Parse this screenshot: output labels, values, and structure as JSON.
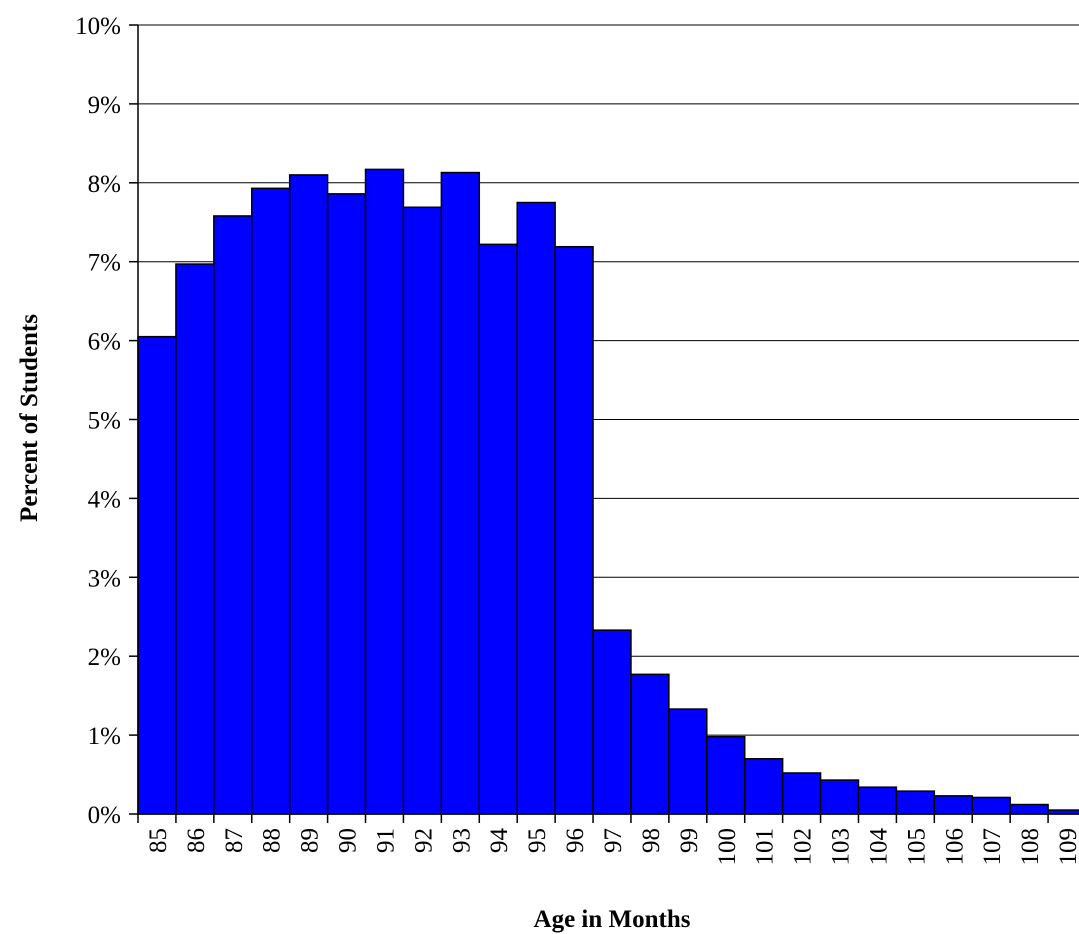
{
  "chart_data": {
    "type": "bar",
    "title": "",
    "xlabel": "Age in Months",
    "ylabel": "Percent of Students",
    "categories": [
      "85",
      "86",
      "87",
      "88",
      "89",
      "90",
      "91",
      "92",
      "93",
      "94",
      "95",
      "96",
      "97",
      "98",
      "99",
      "100",
      "101",
      "102",
      "103",
      "104",
      "105",
      "106",
      "107",
      "108",
      "109"
    ],
    "values": [
      6.05,
      6.97,
      7.58,
      7.93,
      8.1,
      7.86,
      8.17,
      7.69,
      8.13,
      7.22,
      7.75,
      7.19,
      2.33,
      1.77,
      1.33,
      0.98,
      0.7,
      0.52,
      0.43,
      0.34,
      0.29,
      0.23,
      0.21,
      0.12,
      0.05
    ],
    "ylim": [
      0,
      10
    ],
    "yticks": [
      0,
      1,
      2,
      3,
      4,
      5,
      6,
      7,
      8,
      9,
      10
    ],
    "ytick_labels": [
      "0%",
      "1%",
      "2%",
      "3%",
      "4%",
      "5%",
      "6%",
      "7%",
      "8%",
      "9%",
      "10%"
    ],
    "grid": true,
    "bar_color": "#0000FF",
    "bar_edge_color": "#000000",
    "grid_color": "#000000"
  }
}
